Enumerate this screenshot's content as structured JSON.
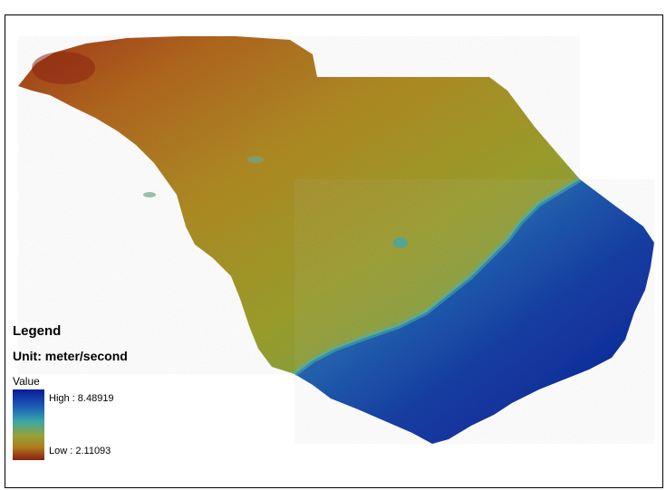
{
  "legend": {
    "title": "Legend",
    "unit": "Unit: meter/second",
    "value_label": "Value",
    "high_label": "High : 8.48919",
    "low_label": "Low : 2.11093",
    "high_value": 8.48919,
    "low_value": 2.11093
  },
  "colors": {
    "high": "#0a1a96",
    "mid_high": "#1d5fb8",
    "mid": "#3aa6a8",
    "mid_low": "#93a43a",
    "low_mid": "#b07a1d",
    "low": "#8a1e12"
  }
}
